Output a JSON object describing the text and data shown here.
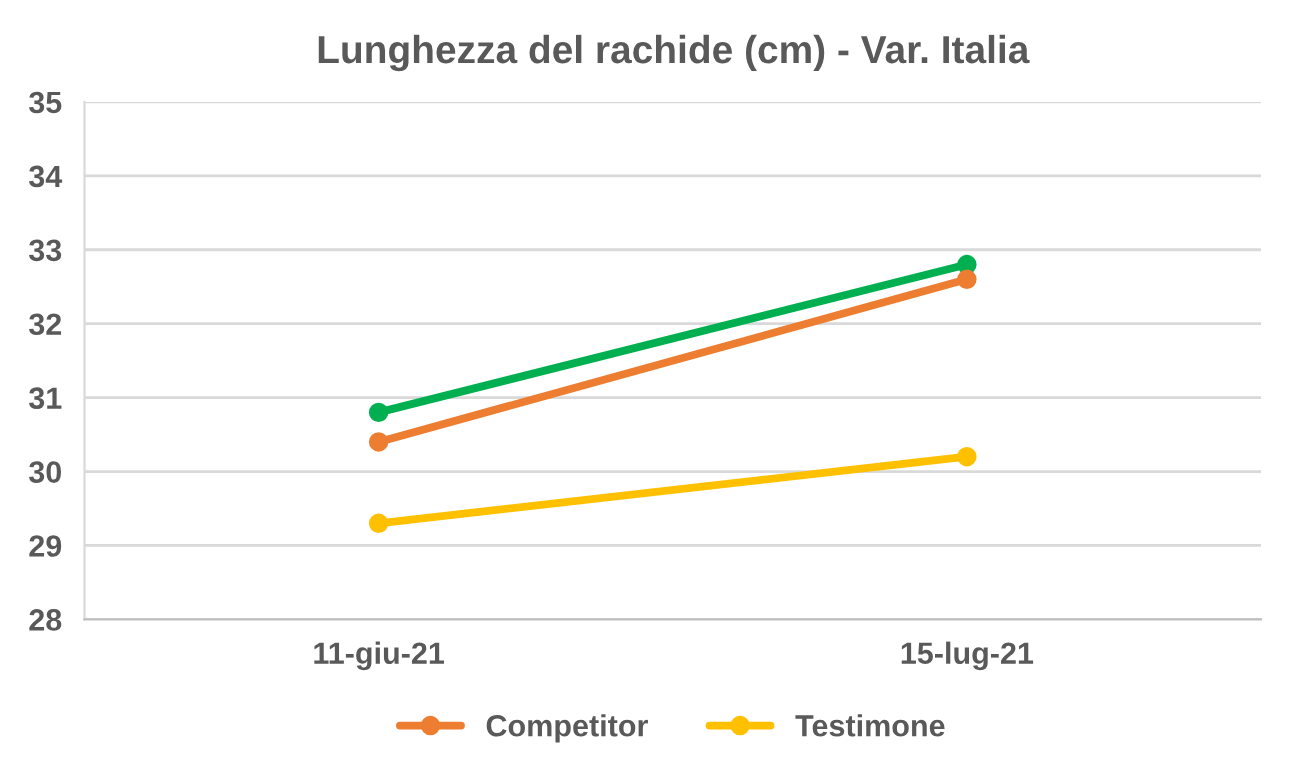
{
  "chart_data": {
    "type": "line",
    "title": "Lunghezza del rachide (cm) - Var. Italia",
    "categories": [
      "11-giu-21",
      "15-lug-21"
    ],
    "series": [
      {
        "color": "#00b050",
        "values": [
          30.8,
          32.8
        ]
      },
      {
        "name": "Competitor",
        "color": "#ed7d31",
        "values": [
          30.4,
          32.6
        ]
      },
      {
        "name": "Testimone",
        "color": "#ffc000",
        "values": [
          29.3,
          30.2
        ]
      }
    ],
    "ylim": [
      28,
      35
    ],
    "yticks": [
      28,
      29,
      30,
      31,
      32,
      33,
      34,
      35
    ],
    "grid": "y",
    "legend": "bottom",
    "marker": "circle",
    "line_style": "solid"
  }
}
